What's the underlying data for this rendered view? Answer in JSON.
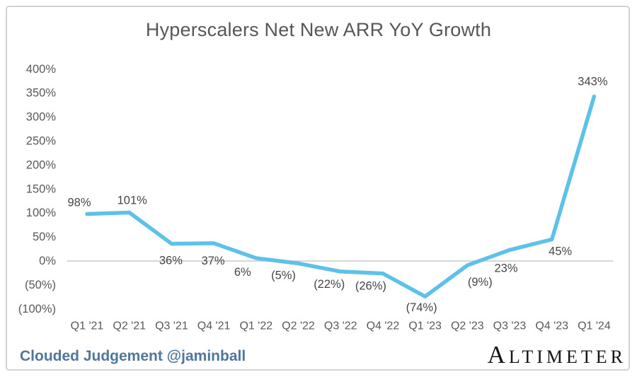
{
  "chart": {
    "title": "Hyperscalers Net New ARR YoY Growth"
  },
  "chart_data": {
    "type": "line",
    "title": "Hyperscalers Net New ARR YoY Growth",
    "categories": [
      "Q1 '21",
      "Q2 '21",
      "Q3 '21",
      "Q4 '21",
      "Q1 '22",
      "Q2 '22",
      "Q3 '22",
      "Q4 '22",
      "Q1 '23",
      "Q2 '23",
      "Q3 '23",
      "Q4 '23",
      "Q1 '24"
    ],
    "series": [
      {
        "name": "Hyperscalers Net New ARR YoY Growth",
        "values": [
          98,
          101,
          36,
          37,
          6,
          -5,
          -22,
          -26,
          -74,
          -9,
          23,
          45,
          343
        ],
        "point_labels": [
          "98%",
          "101%",
          "36%",
          "37%",
          "6%",
          "(5%)",
          "(22%)",
          "(26%)",
          "(74%)",
          "(9%)",
          "23%",
          "45%",
          "343%"
        ]
      }
    ],
    "y_axis": {
      "range": [
        -100,
        400
      ],
      "ticks": [
        {
          "label": "400%",
          "value": 400
        },
        {
          "label": "350%",
          "value": 350
        },
        {
          "label": "300%",
          "value": 300
        },
        {
          "label": "250%",
          "value": 250
        },
        {
          "label": "200%",
          "value": 200
        },
        {
          "label": "150%",
          "value": 150
        },
        {
          "label": "100%",
          "value": 100
        },
        {
          "label": "50%",
          "value": 50
        },
        {
          "label": "0%",
          "value": 0
        },
        {
          "label": "(50%)",
          "value": -50
        },
        {
          "label": "(100%)",
          "value": -100
        }
      ]
    },
    "gridlines": "zero-line-only",
    "legend": "none",
    "colors": {
      "line": "#5ec1e8",
      "axis_text": "#595959",
      "data_label_text": "#454545",
      "zero_line": "#c9c9c9"
    }
  },
  "footer": {
    "attribution": "Clouded Judgement @jaminball",
    "attribution_color": "#50779b",
    "logo_text": "ALTIMETER"
  }
}
